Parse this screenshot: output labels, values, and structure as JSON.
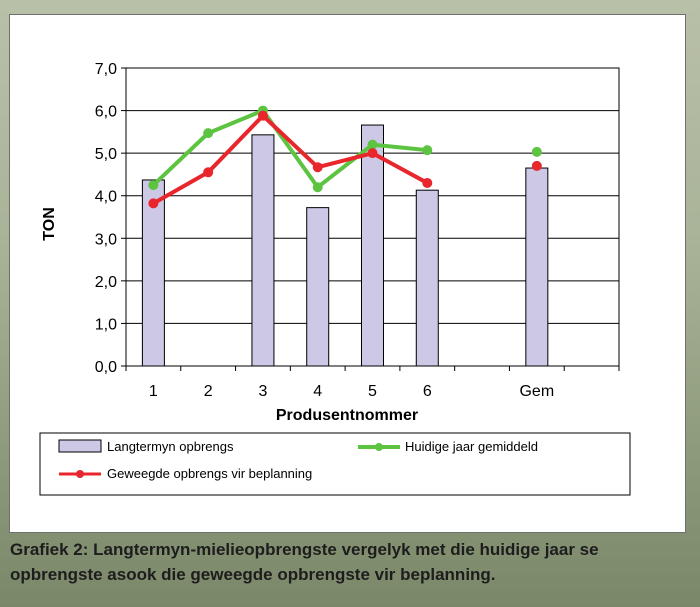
{
  "chart_data": {
    "type": "bar",
    "categories": [
      "1",
      "2",
      "3",
      "4",
      "5",
      "6",
      "",
      "Gem",
      ""
    ],
    "ylim": [
      0,
      7
    ],
    "yticks": [
      0,
      1,
      2,
      3,
      4,
      5,
      6,
      7
    ],
    "ytick_labels": [
      "0,0",
      "1,0",
      "2,0",
      "3,0",
      "4,0",
      "5,0",
      "6,0",
      "7,0"
    ],
    "ylabel": "TON",
    "xlabel": "Produsentnommer",
    "grid": true,
    "legend_position": "bottom",
    "series": [
      {
        "name": "Langtermyn opbrengs",
        "kind": "bar",
        "color": "#ccc8e6",
        "values": [
          4.37,
          null,
          5.43,
          3.72,
          5.66,
          4.13,
          null,
          4.65,
          null
        ]
      },
      {
        "name": "Huidige jaar gemiddeld",
        "kind": "line",
        "color": "#5cc441",
        "values": [
          4.25,
          5.47,
          6.0,
          4.2,
          5.2,
          5.07,
          null,
          5.03,
          null
        ]
      },
      {
        "name": "Geweegde opbrengs vir beplanning",
        "kind": "line",
        "color": "#e8262b",
        "values": [
          3.82,
          4.55,
          5.88,
          4.67,
          5.0,
          4.3,
          null,
          4.7,
          null
        ]
      }
    ]
  },
  "caption": "Grafiek 2: Langtermyn-mielieopbrengste vergelyk met die huidige jaar se opbrengste asook die geweegde opbrengste vir beplanning."
}
